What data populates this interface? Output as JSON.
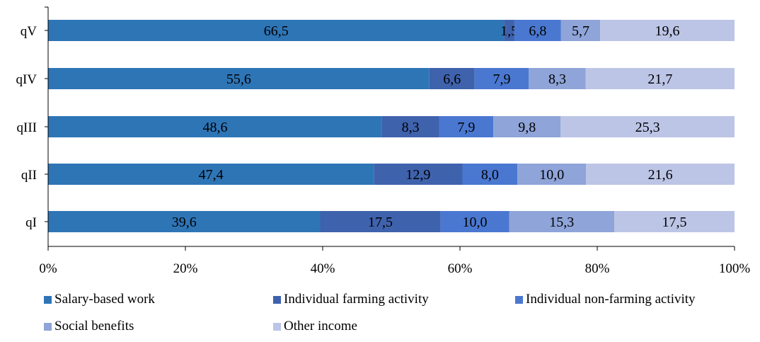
{
  "chart_data": {
    "type": "bar",
    "orientation": "horizontal",
    "stacked": "percent",
    "categories": [
      "qV",
      "qIV",
      "qIII",
      "qII",
      "qI"
    ],
    "series": [
      {
        "name": "Salary-based work",
        "color": "#2e75b6",
        "values": [
          66.5,
          55.6,
          48.6,
          47.4,
          39.6
        ],
        "labels": [
          "66,5",
          "55,6",
          "48,6",
          "47,4",
          "39,6"
        ]
      },
      {
        "name": "Individual farming activity",
        "color": "#3f62ad",
        "values": [
          1.5,
          6.6,
          8.3,
          12.9,
          17.5
        ],
        "labels": [
          "1,5",
          "6,6",
          "8,3",
          "12,9",
          "17,5"
        ]
      },
      {
        "name": "Individual non-farming activity",
        "color": "#4a78d1",
        "values": [
          6.8,
          7.9,
          7.9,
          8.0,
          10.0
        ],
        "labels": [
          "6,8",
          "7,9",
          "7,9",
          "8,0",
          "10,0"
        ]
      },
      {
        "name": "Social benefits",
        "color": "#8fa4d8",
        "values": [
          5.7,
          8.3,
          9.8,
          10.0,
          15.3
        ],
        "labels": [
          "5,7",
          "8,3",
          "9,8",
          "10,0",
          "15,3"
        ]
      },
      {
        "name": "Other income",
        "color": "#bcc5e6",
        "values": [
          19.6,
          21.7,
          25.3,
          21.6,
          17.5
        ],
        "labels": [
          "19,6",
          "21,7",
          "25,3",
          "21,6",
          "17,5"
        ]
      }
    ],
    "x_ticks": [
      "0%",
      "20%",
      "40%",
      "60%",
      "80%",
      "100%"
    ],
    "xlim": [
      0,
      100
    ],
    "grid": false,
    "legend_position": "bottom"
  }
}
